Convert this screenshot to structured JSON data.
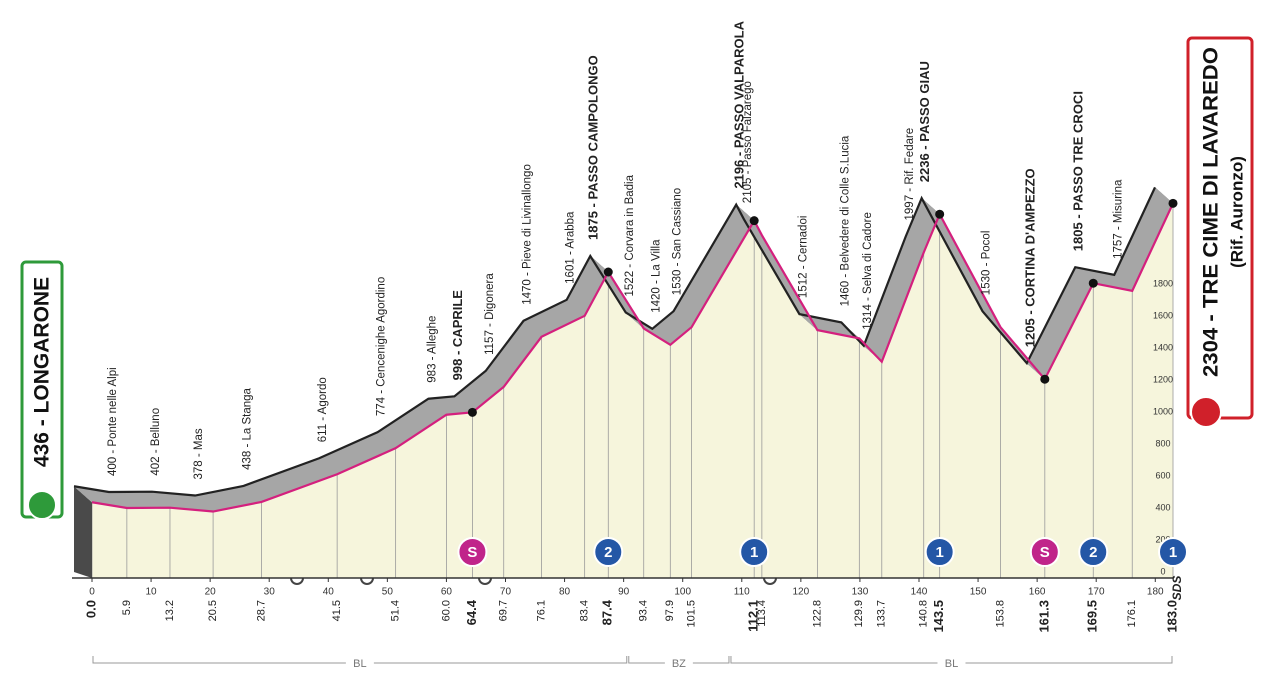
{
  "chart_data": {
    "type": "profile",
    "x": [
      {
        "value": 0,
        "label": "0.0"
      },
      5.9,
      13.2,
      20.5,
      28.7,
      41.5,
      51.4,
      {
        "value": 60,
        "label": "60.0"
      },
      64.4,
      69.7,
      76.1,
      83.4,
      87.4,
      93.4,
      97.9,
      101.5,
      112.1,
      113.4,
      122.8,
      129.9,
      133.7,
      140.8,
      143.5,
      153.8,
      161.3,
      169.5,
      176.1,
      {
        "value": 183,
        "label": "183.0"
      }
    ],
    "values": [
      436,
      400,
      402,
      378,
      438,
      611,
      774,
      983,
      998,
      1157,
      1470,
      1601,
      1875,
      1522,
      1420,
      1530,
      2196,
      2105,
      1512,
      1460,
      1314,
      1997,
      2236,
      1530,
      1205,
      1805,
      1757,
      2304
    ],
    "value_labels": [
      "436 - LONGARONE",
      "400 - Ponte nelle Alpi",
      "402 - Belluno",
      "378 - Mas",
      "438 - La Stanga",
      "611 - Agordo",
      "774 - Cencenighe Agordino",
      "983 - Alleghe",
      "998 - CAPRILE",
      "1157 - Digonera",
      "1470 - Pieve di Livinallongo",
      "1601 - Arabba",
      "1875 - PASSO CAMPOLONGO",
      "1522 - Corvara in Badia",
      "1420 - La Villa",
      "1530 - San Cassiano",
      "2196 - PASSO VALPAROLA",
      "2105 - Passo Falzarego",
      "1512 - Cernadoi",
      "1460 - Belvedere di Colle S.Lucia",
      "1314 - Selva di Cadore",
      "1997 - Rif. Fedare",
      "2236 - PASSO GIAU",
      "1530 - Pocol",
      "1205 - CORTINA D'AMPEZZO",
      "1805 - PASSO TRE CROCI",
      "1757 - Misurina",
      "2304 - TRE CIME DI LAVAREDO"
    ],
    "major": [
      true,
      false,
      false,
      false,
      false,
      false,
      false,
      false,
      true,
      false,
      false,
      false,
      true,
      false,
      false,
      false,
      true,
      false,
      false,
      false,
      false,
      false,
      true,
      false,
      true,
      true,
      false,
      true
    ],
    "finish_sublabel": "(Rif. Auronzo)",
    "xlim": [
      0,
      183
    ],
    "xticks": [
      0,
      10,
      20,
      30,
      40,
      50,
      60,
      70,
      80,
      90,
      100,
      110,
      120,
      130,
      140,
      150,
      160,
      170,
      180
    ],
    "ylim": [
      0,
      2500
    ],
    "yticks": [
      0,
      200,
      400,
      600,
      800,
      1000,
      1200,
      1400,
      1600,
      1800
    ],
    "line_color": "#d4207e",
    "fill_color": "#f6f5dc",
    "top_color": "#a6a6a6",
    "climbs": [
      {
        "x": 64.4,
        "label": "S",
        "color": "#c0248a"
      },
      {
        "x": 87.4,
        "label": "2",
        "color": "#2457a6"
      },
      {
        "x": 112.1,
        "label": "1",
        "color": "#2457a6"
      },
      {
        "x": 143.5,
        "label": "1",
        "color": "#2457a6"
      },
      {
        "x": 161.3,
        "label": "S",
        "color": "#c0248a"
      },
      {
        "x": 169.5,
        "label": "2",
        "color": "#2457a6"
      },
      {
        "x": 183,
        "label": "1",
        "color": "#2457a6"
      }
    ],
    "regions": [
      {
        "label": "BL",
        "from": 0,
        "to": 90.7
      },
      {
        "label": "BZ",
        "from": 90.7,
        "to": 108
      },
      {
        "label": "BL",
        "from": 108,
        "to": 183
      }
    ],
    "logo": "SDS"
  }
}
